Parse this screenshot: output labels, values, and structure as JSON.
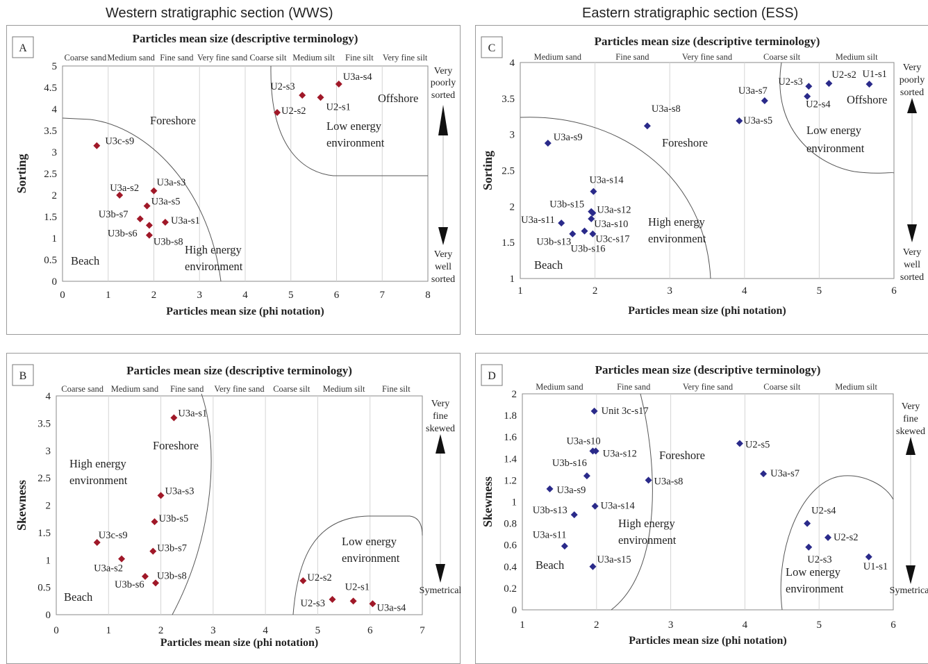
{
  "sections": {
    "western": "Western stratigraphic section (WWS)",
    "eastern": "Eastern stratigraphic section (ESS)"
  },
  "colors": {
    "wws_marker": "#a01828",
    "ess_marker": "#2a2a8a",
    "grid": "#d4d4d4",
    "boundary": "#555555"
  },
  "chart_data": [
    {
      "type": "scatter",
      "panel": "A",
      "title": "Particles mean size (descriptive terminology)",
      "xlabel": "Particles mean size (phi notation)",
      "ylabel": "Sorting",
      "xlim": [
        0,
        8
      ],
      "ylim": [
        0,
        5
      ],
      "xticks": [
        "0",
        "1",
        "2",
        "3",
        "4",
        "5",
        "6",
        "7",
        "8"
      ],
      "yticks": [
        "0",
        "0.5",
        "1",
        "1.5",
        "2",
        "2.5",
        "3",
        "3.5",
        "4",
        "4.5",
        "5"
      ],
      "categories": [
        "Coarse sand",
        "Medium sand",
        "Fine sand",
        "Very fine sand",
        "Coarse silt",
        "Medium silt",
        "Fine silt",
        "Very fine silt"
      ],
      "side_top": [
        "Very",
        "poorly",
        "sorted"
      ],
      "side_bottom": [
        "Very",
        "well",
        "sorted"
      ],
      "zones": [
        "Foreshore",
        "Beach",
        "High energy",
        "environment",
        "Offshore",
        "Low energy",
        "environment"
      ],
      "marker": "diamond",
      "points": [
        {
          "label": "U3c-s9",
          "x": 0.75,
          "y": 3.15
        },
        {
          "label": "U3a-s2",
          "x": 1.25,
          "y": 2.0
        },
        {
          "label": "U3a-s3",
          "x": 2.0,
          "y": 2.1
        },
        {
          "label": "U3a-s5",
          "x": 1.85,
          "y": 1.75
        },
        {
          "label": "U3b-s7",
          "x": 1.7,
          "y": 1.45
        },
        {
          "label": "U3b-s6",
          "x": 1.9,
          "y": 1.3
        },
        {
          "label": "U3a-s1",
          "x": 2.25,
          "y": 1.37
        },
        {
          "label": "U3b-s8",
          "x": 1.9,
          "y": 1.07
        },
        {
          "label": "U2-s3",
          "x": 5.25,
          "y": 4.32
        },
        {
          "label": "U2-s2",
          "x": 4.7,
          "y": 3.92
        },
        {
          "label": "U2-s1",
          "x": 5.65,
          "y": 4.27
        },
        {
          "label": "U3a-s4",
          "x": 6.05,
          "y": 4.58
        }
      ]
    },
    {
      "type": "scatter",
      "panel": "B",
      "title": "Particles mean size (descriptive terminology)",
      "xlabel": "Particles mean size (phi notation)",
      "ylabel": "Skewness",
      "xlim": [
        0,
        7
      ],
      "ylim": [
        0,
        4
      ],
      "xticks": [
        "0",
        "1",
        "2",
        "3",
        "4",
        "5",
        "6",
        "7"
      ],
      "yticks": [
        "0",
        "0.5",
        "1",
        "1.5",
        "2",
        "2.5",
        "3",
        "3.5",
        "4"
      ],
      "categories": [
        "Coarse sand",
        "Medium sand",
        "Fine sand",
        "Very fine sand",
        "Coarse silt",
        "Medium silt",
        "Fine silt"
      ],
      "side_top": [
        "Very",
        "fine",
        "skewed"
      ],
      "side_bottom": [
        "Symetrical"
      ],
      "zones": [
        "Foreshore",
        "High energy",
        "environment",
        "Beach",
        "Low energy",
        "environment"
      ],
      "marker": "diamond",
      "points": [
        {
          "label": "U3a-s1",
          "x": 2.25,
          "y": 3.6
        },
        {
          "label": "U3a-s3",
          "x": 2.0,
          "y": 2.18
        },
        {
          "label": "U3b-s5",
          "x": 1.88,
          "y": 1.7
        },
        {
          "label": "U3c-s9",
          "x": 0.78,
          "y": 1.32
        },
        {
          "label": "U3b-s7",
          "x": 1.85,
          "y": 1.16
        },
        {
          "label": "U3a-s2",
          "x": 1.25,
          "y": 1.02
        },
        {
          "label": "U3b-s6",
          "x": 1.7,
          "y": 0.7
        },
        {
          "label": "U3b-s8",
          "x": 1.9,
          "y": 0.58
        },
        {
          "label": "U2-s2",
          "x": 4.72,
          "y": 0.62
        },
        {
          "label": "U2-s3",
          "x": 5.28,
          "y": 0.28
        },
        {
          "label": "U2-s1",
          "x": 5.68,
          "y": 0.25
        },
        {
          "label": "U3a-s4",
          "x": 6.05,
          "y": 0.2
        }
      ]
    },
    {
      "type": "scatter",
      "panel": "C",
      "title": "Particles mean size (descriptive terminology)",
      "xlabel": "Particles mean size (phi notation)",
      "ylabel": "Sorting",
      "xlim": [
        1,
        6
      ],
      "ylim": [
        1,
        4
      ],
      "xticks": [
        "1",
        "2",
        "3",
        "4",
        "5",
        "6"
      ],
      "yticks": [
        "1",
        "1.5",
        "2",
        "2.5",
        "3",
        "3.5",
        "4"
      ],
      "categories": [
        "Medium sand",
        "Fine sand",
        "Very fine sand",
        "Coarse silt",
        "Medium silt"
      ],
      "side_top": [
        "Very",
        "poorly",
        "sorted"
      ],
      "side_bottom": [
        "Very",
        "well",
        "sorted"
      ],
      "zones": [
        "Foreshore",
        "High energy",
        "environment",
        "Beach",
        "Offshore",
        "Low energy",
        "environment"
      ],
      "marker": "diamond",
      "points": [
        {
          "label": "U3a-s9",
          "x": 1.37,
          "y": 2.88
        },
        {
          "label": "U3a-s8",
          "x": 2.7,
          "y": 3.12
        },
        {
          "label": "U3a-s7",
          "x": 4.27,
          "y": 3.47
        },
        {
          "label": "U3a-s5",
          "x": 3.93,
          "y": 3.19
        },
        {
          "label": "U2-s3",
          "x": 4.86,
          "y": 3.67
        },
        {
          "label": "U2-s2",
          "x": 5.13,
          "y": 3.71
        },
        {
          "label": "U1-s1",
          "x": 5.67,
          "y": 3.7
        },
        {
          "label": "U2-s4",
          "x": 4.84,
          "y": 3.53
        },
        {
          "label": "U3a-s14",
          "x": 1.98,
          "y": 2.21
        },
        {
          "label": "U3b-s15",
          "x": 1.95,
          "y": 1.93
        },
        {
          "label": "U3a-s12",
          "x": 1.97,
          "y": 1.91
        },
        {
          "label": "U3a-s10",
          "x": 1.95,
          "y": 1.83
        },
        {
          "label": "U3a-s11",
          "x": 1.55,
          "y": 1.77
        },
        {
          "label": "U3b-s13",
          "x": 1.7,
          "y": 1.62
        },
        {
          "label": "U3c-s17",
          "x": 1.97,
          "y": 1.62
        },
        {
          "label": "U3b-s16",
          "x": 1.86,
          "y": 1.66
        }
      ]
    },
    {
      "type": "scatter",
      "panel": "D",
      "title": "Particles mean size (descriptive terminology)",
      "xlabel": "Particles mean size (phi notation)",
      "ylabel": "Skewness",
      "xlim": [
        1,
        6
      ],
      "ylim": [
        0,
        2
      ],
      "xticks": [
        "1",
        "2",
        "3",
        "4",
        "5",
        "6"
      ],
      "yticks": [
        "0",
        "0.2",
        "0.4",
        "0.6",
        "0.8",
        "1",
        "1.2",
        "1.4",
        "1.6",
        "1.8",
        "2"
      ],
      "categories": [
        "Medium sand",
        "Fine sand",
        "Very fine sand",
        "Coarse silt",
        "Medium silt"
      ],
      "side_top": [
        "Very",
        "fine",
        "skewed"
      ],
      "side_bottom": [
        "Symetrical"
      ],
      "zones": [
        "Foreshore",
        "High energy",
        "environment",
        "Beach",
        "Low energy",
        "environment"
      ],
      "marker": "diamond",
      "points": [
        {
          "label": "Unit 3c-s17",
          "x": 1.97,
          "y": 1.84
        },
        {
          "label": "U3a-s10",
          "x": 1.95,
          "y": 1.47
        },
        {
          "label": "U3a-s12",
          "x": 1.99,
          "y": 1.47
        },
        {
          "label": "U3b-s16",
          "x": 1.87,
          "y": 1.24
        },
        {
          "label": "U3a-s9",
          "x": 1.37,
          "y": 1.12
        },
        {
          "label": "U3a-s8",
          "x": 2.7,
          "y": 1.2
        },
        {
          "label": "U2-s5",
          "x": 3.93,
          "y": 1.54
        },
        {
          "label": "U3a-s7",
          "x": 4.25,
          "y": 1.26
        },
        {
          "label": "U3a-s14",
          "x": 1.98,
          "y": 0.96
        },
        {
          "label": "U3b-s13",
          "x": 1.7,
          "y": 0.88
        },
        {
          "label": "U3a-s11",
          "x": 1.57,
          "y": 0.59
        },
        {
          "label": "U3a-s15",
          "x": 1.95,
          "y": 0.4
        },
        {
          "label": "U2-s4",
          "x": 4.84,
          "y": 0.8
        },
        {
          "label": "U2-s2",
          "x": 5.12,
          "y": 0.67
        },
        {
          "label": "U2-s3",
          "x": 4.86,
          "y": 0.58
        },
        {
          "label": "U1-s1",
          "x": 5.67,
          "y": 0.49
        }
      ]
    }
  ]
}
